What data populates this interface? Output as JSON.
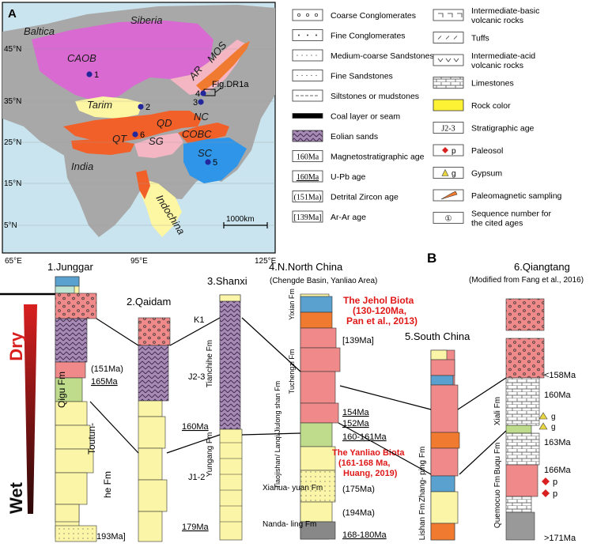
{
  "panel_a": {
    "label": "A",
    "regions": {
      "siberia": "Siberia",
      "baltica": "Baltica",
      "caob": "CAOB",
      "ar": "AR",
      "mos": "MOS",
      "tarim": "Tarim",
      "qd": "QD",
      "nc": "NC",
      "qt": "QT",
      "sg": "SG",
      "cobc": "COBC",
      "sc": "SC",
      "india": "India",
      "indochina": "Indochina"
    },
    "fig_ref": "Fig.DR1a",
    "scale_bar": "1000km",
    "lat_labels": [
      "45°N",
      "35°N",
      "25°N",
      "15°N",
      "5°N"
    ],
    "lon_labels": [
      "65°E",
      "95°E",
      "125°E"
    ],
    "site_numbers": [
      "1",
      "2",
      "3",
      "4",
      "5",
      "6"
    ]
  },
  "legend": {
    "items": [
      {
        "label": "Coarse Conglomerates"
      },
      {
        "label": "Fine Conglomerates"
      },
      {
        "label": "Medium-coarse Sandstones"
      },
      {
        "label": "Fine Sandstones"
      },
      {
        "label": "Siltstones or mudstones"
      },
      {
        "label": "Coal layer or seam"
      },
      {
        "label": "Eolian sands"
      },
      {
        "label": "Magnetostratigraphic age",
        "sample": "160Ma"
      },
      {
        "label": "U-Pb age",
        "sample": "160Ma"
      },
      {
        "label": "Detrital Zircon age",
        "sample": "(151Ma)"
      },
      {
        "label": "Ar-Ar age",
        "sample": "[139Ma]"
      },
      {
        "label": "Intermediate-basic volcanic rocks"
      },
      {
        "label": "Tuffs"
      },
      {
        "label": "Intermediate-acid volcanic rocks"
      },
      {
        "label": "Limestones"
      },
      {
        "label": "Rock color"
      },
      {
        "label": "Stratigraphic age",
        "sample": "J2-3"
      },
      {
        "label": "Paleosol",
        "sample": "p"
      },
      {
        "label": "Gypsum",
        "sample": "g"
      },
      {
        "label": "Paleomagnetic sampling"
      },
      {
        "label": "Sequence number for the cited ages",
        "sample": "①"
      }
    ]
  },
  "panel_b": {
    "label": "B",
    "dry_label": "Dry",
    "wet_label": "Wet",
    "columns": [
      {
        "title": "1.Junggar",
        "formations": [
          "Qigu Fm",
          "Toutun-",
          "he Fm"
        ],
        "ages": [
          "(151Ma)",
          "165Ma",
          "193Ma]"
        ]
      },
      {
        "title": "2.Qaidam"
      },
      {
        "title": "3.Shanxi",
        "formations": [
          "Tianchihe Fm",
          "Yungang Fm"
        ],
        "strat": [
          "K1",
          "J2-3",
          "J1-2"
        ],
        "ages": [
          "160Ma",
          "179Ma"
        ]
      },
      {
        "title": "4.N.North China",
        "subtitle": "(Chengde Basin, Yanliao Area)",
        "formations": [
          "Yixian Fm",
          "Tuchengzi Fm",
          "Tiaojishan/ Lanqi/Jiulong shan Fm",
          "Xiahua- yuan Fm",
          "Nanda- ling Fm"
        ],
        "ages": [
          "[139Ma]",
          "154Ma",
          "152Ma",
          "160-161Ma",
          "(175Ma)",
          "(194Ma)",
          "168-180Ma"
        ]
      },
      {
        "title": "5.South China",
        "formations": [
          "Zhang- ping Fm",
          "Lishan Fm"
        ]
      },
      {
        "title": "6.Qiangtang",
        "subtitle": "(Modified from Fang et al., 2016)",
        "formations": [
          "Xiali Fm",
          "Buqu Fm",
          "Quemocuo Fm"
        ],
        "ages": [
          "<158Ma",
          "160Ma",
          "163Ma",
          "166Ma",
          ">171Ma"
        ]
      }
    ],
    "biota_1": {
      "name": "The Jehol Biota",
      "detail": "(130-120Ma,",
      "ref": "Pan et al., 2013)"
    },
    "biota_2": {
      "name": "The Yanliao Biota",
      "detail": "(161-168 Ma,",
      "ref": "Huang, 2019)"
    },
    "markers": {
      "p": "p",
      "g": "g"
    }
  }
}
